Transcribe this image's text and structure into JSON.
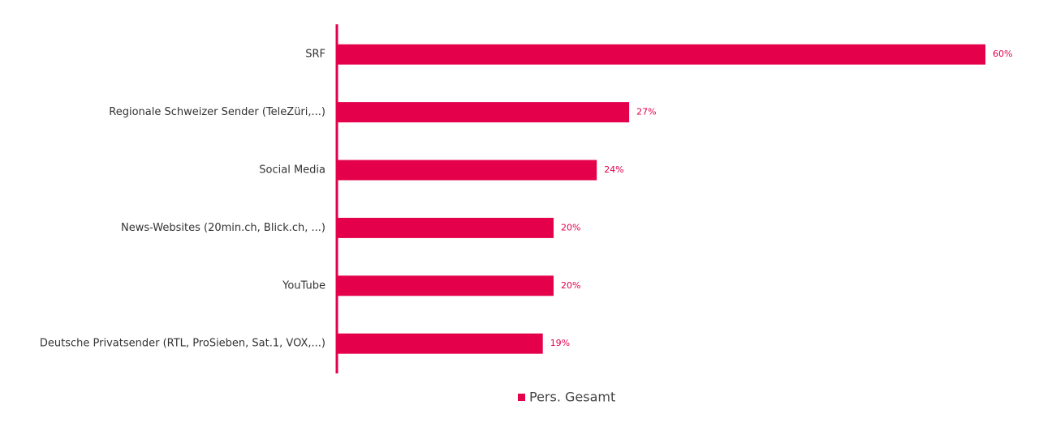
{
  "chart_data": {
    "type": "bar",
    "orientation": "horizontal",
    "categories": [
      "SRF",
      "Regionale Schweizer Sender (TeleZüri,...)",
      "Social Media",
      "News-Websites (20min.ch, Blick.ch, ...)",
      "YouTube",
      "Deutsche Privatsender (RTL, ProSieben, Sat.1, VOX,...)"
    ],
    "series": [
      {
        "name": "Pers. Gesamt",
        "color": "#e4004b",
        "values": [
          60,
          27,
          24,
          20,
          20,
          19
        ],
        "value_labels": [
          "60%",
          "27%",
          "24%",
          "20%",
          "20%",
          "19%"
        ]
      }
    ],
    "legend": "bottom"
  }
}
